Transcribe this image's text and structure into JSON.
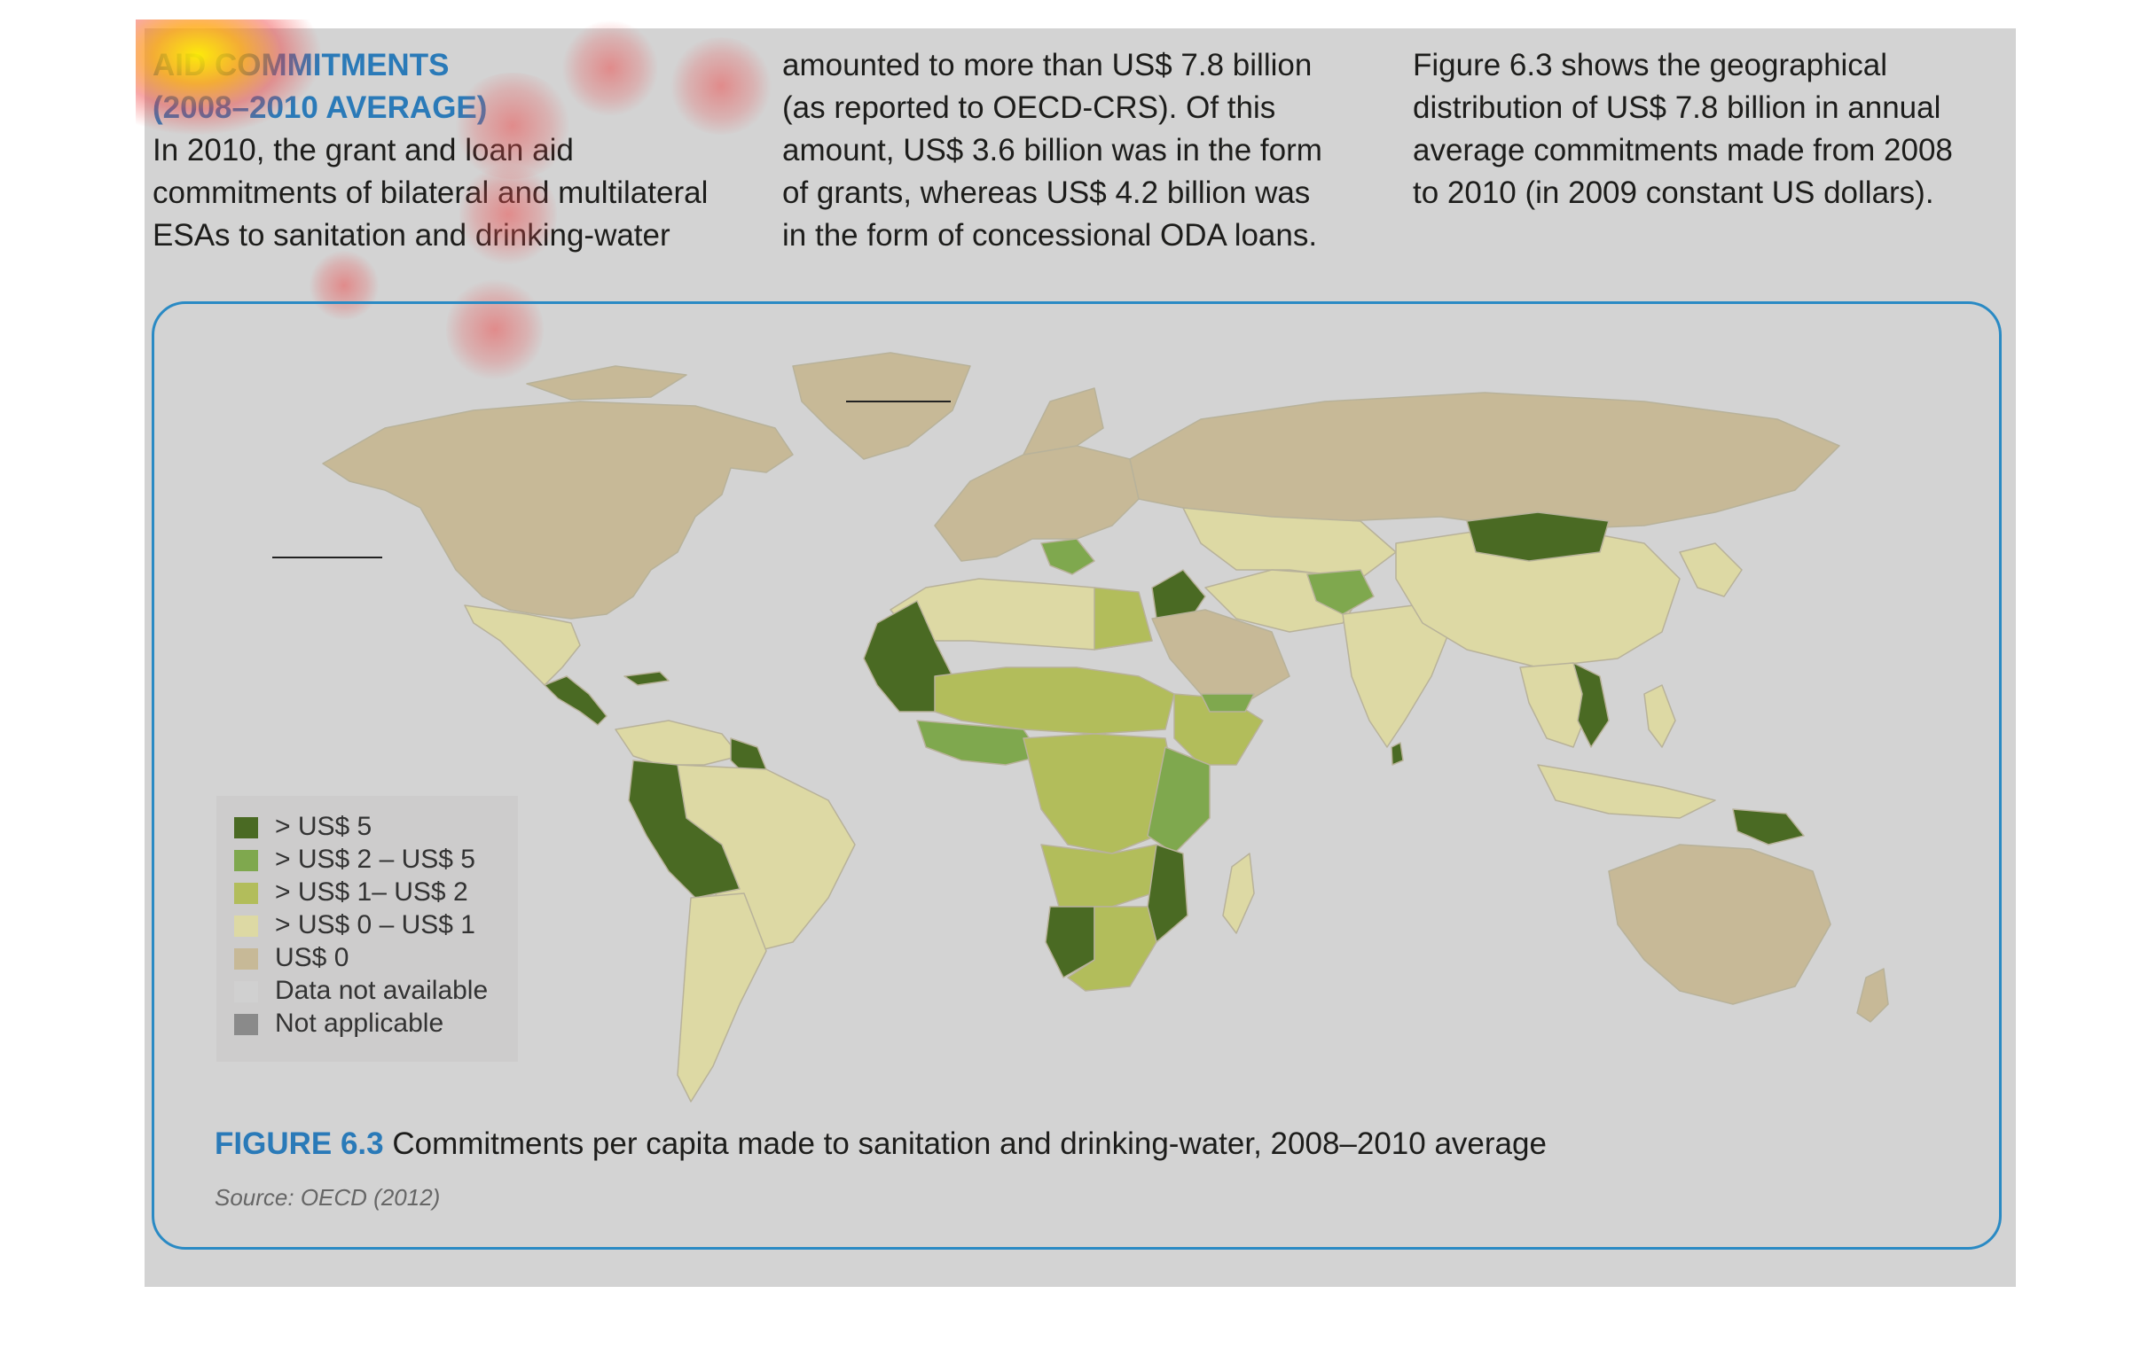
{
  "text": {
    "heading_line1": "AID COMMITMENTS",
    "heading_line2": "(2008–2010 AVERAGE)",
    "col1_line1": "In 2010, the grant and loan aid",
    "col1_line2": "commitments of bilateral and multilateral",
    "col1_line3": "ESAs to sanitation and drinking-water",
    "col2_line1": "amounted to more than US$ 7.8 billion",
    "col2_line2": "(as reported to OECD-CRS). Of this",
    "col2_line3": "amount, US$ 3.6 billion was in the form",
    "col2_line4": "of grants, whereas US$ 4.2 billion was",
    "col2_line5": "in the form of concessional ODA loans.",
    "col3_line1": "Figure 6.3 shows the geographical",
    "col3_line2": "distribution of US$ 7.8 billion in annual",
    "col3_line3": "average commitments made from 2008",
    "col3_line4": "to 2010 (in 2009 constant US dollars)."
  },
  "figure": {
    "number": "FIGURE 6.3",
    "caption": "Commitments per capita made to sanitation and drinking-water, 2008–2010 average",
    "source": "Source: OECD (2012)"
  },
  "legend": [
    {
      "label": "> US$ 5",
      "color": "#4a6a23"
    },
    {
      "label": "> US$ 2 – US$ 5",
      "color": "#7fa84e"
    },
    {
      "label": "> US$ 1– US$ 2",
      "color": "#b2bd5b"
    },
    {
      "label": "> US$ 0 – US$ 1",
      "color": "#ddd9a4"
    },
    {
      "label": "US$ 0",
      "color": "#c7b997"
    },
    {
      "label": "Data not available",
      "color": "#d0d0d0"
    },
    {
      "label": "Not applicable",
      "color": "#8a8a8a"
    }
  ],
  "colors": {
    "accent": "#2a7ab8",
    "ocean": "#d3d3d3"
  }
}
